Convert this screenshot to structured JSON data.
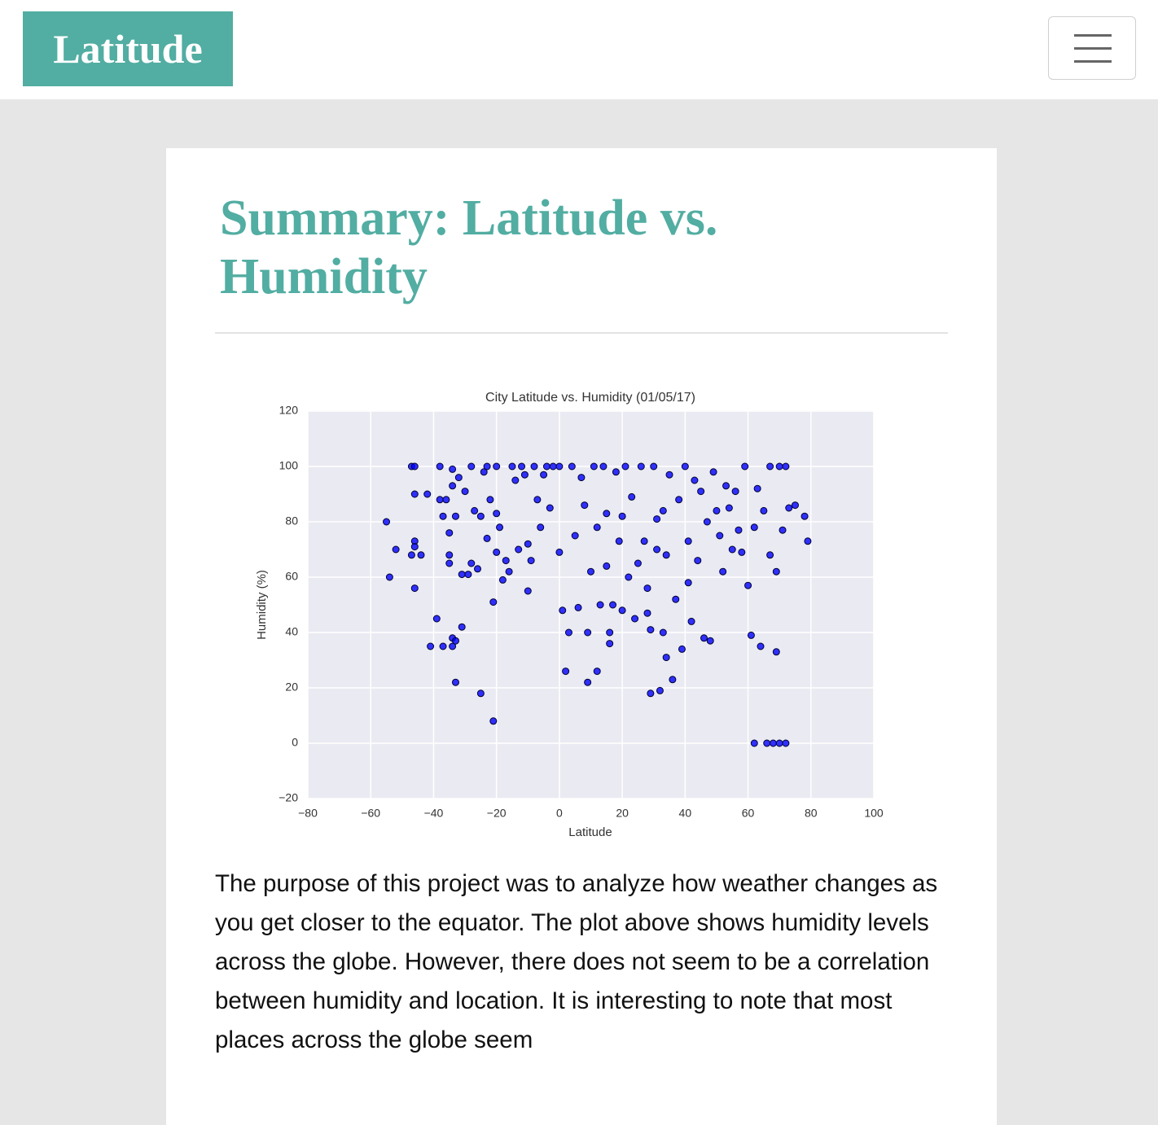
{
  "header": {
    "brand": "Latitude"
  },
  "article": {
    "title": "Summary: Latitude vs. Humidity",
    "paragraph": "The purpose of this project was to analyze how weather changes as you get closer to the equator. The plot above shows humidity levels across the globe. However, there does not seem to be a correlation between humidity and location. It is interesting to note that most places across the globe seem"
  },
  "chart_data": {
    "type": "scatter",
    "title": "City Latitude vs. Humidity (01/05/17)",
    "xlabel": "Latitude",
    "ylabel": "Humidity (%)",
    "color": "#0000ff",
    "edge_color": "#000033",
    "background": "#eaeaf2",
    "grid": true,
    "xlim": [
      -80,
      100
    ],
    "ylim": [
      -20,
      120
    ],
    "xticks": [
      {
        "value": -80,
        "label": "−80"
      },
      {
        "value": -60,
        "label": "−60"
      },
      {
        "value": -40,
        "label": "−40"
      },
      {
        "value": -20,
        "label": "−20"
      },
      0,
      20,
      40,
      60,
      80,
      100
    ],
    "yticks": [
      {
        "value": -20,
        "label": "−20"
      },
      0,
      20,
      40,
      60,
      80,
      100,
      120
    ],
    "x": [
      -55,
      -54,
      -52,
      -47,
      -46,
      -46,
      -46,
      -46,
      -47,
      -46,
      -44,
      -42,
      -41,
      -39,
      -38,
      -38,
      -37,
      -37,
      -36,
      -35,
      -35,
      -35,
      -34,
      -34,
      -34,
      -34,
      -33,
      -33,
      -33,
      -32,
      -31,
      -31,
      -30,
      -29,
      -28,
      -28,
      -27,
      -26,
      -25,
      -25,
      -24,
      -23,
      -23,
      -22,
      -21,
      -21,
      -20,
      -20,
      -20,
      -19,
      -18,
      -17,
      -16,
      -15,
      -14,
      -13,
      -12,
      -11,
      -10,
      -10,
      -9,
      -8,
      -7,
      -6,
      -5,
      -4,
      -3,
      -2,
      0,
      0,
      1,
      2,
      3,
      4,
      5,
      6,
      7,
      8,
      9,
      9,
      10,
      11,
      12,
      12,
      13,
      14,
      15,
      15,
      16,
      16,
      17,
      18,
      19,
      20,
      20,
      21,
      22,
      23,
      24,
      25,
      26,
      27,
      28,
      28,
      29,
      29,
      30,
      31,
      31,
      32,
      33,
      33,
      34,
      34,
      35,
      36,
      37,
      38,
      39,
      40,
      41,
      41,
      42,
      43,
      44,
      45,
      46,
      47,
      48,
      49,
      50,
      51,
      52,
      53,
      54,
      55,
      56,
      57,
      58,
      59,
      60,
      61,
      62,
      62,
      63,
      64,
      65,
      66,
      67,
      67,
      68,
      69,
      69,
      70,
      70,
      71,
      72,
      72,
      73,
      75,
      78,
      79
    ],
    "values": [
      80,
      60,
      70,
      100,
      100,
      90,
      73,
      71,
      68,
      56,
      68,
      90,
      35,
      45,
      100,
      88,
      35,
      82,
      88,
      68,
      65,
      76,
      99,
      93,
      38,
      35,
      37,
      22,
      82,
      96,
      42,
      61,
      91,
      61,
      100,
      65,
      84,
      63,
      82,
      18,
      98,
      100,
      74,
      88,
      51,
      8,
      100,
      83,
      69,
      78,
      59,
      66,
      62,
      100,
      95,
      70,
      100,
      97,
      55,
      72,
      66,
      100,
      88,
      78,
      97,
      100,
      85,
      100,
      100,
      69,
      48,
      26,
      40,
      100,
      75,
      49,
      96,
      86,
      40,
      22,
      62,
      100,
      26,
      78,
      50,
      100,
      83,
      64,
      36,
      40,
      50,
      98,
      73,
      82,
      48,
      100,
      60,
      89,
      45,
      65,
      100,
      73,
      47,
      56,
      18,
      41,
      100,
      70,
      81,
      19,
      40,
      84,
      31,
      68,
      97,
      23,
      52,
      88,
      34,
      100,
      58,
      73,
      44,
      95,
      66,
      91,
      38,
      80,
      37,
      98,
      84,
      75,
      62,
      93,
      85,
      70,
      91,
      77,
      69,
      100,
      57,
      39,
      78,
      0,
      92,
      35,
      84,
      0,
      100,
      68,
      0,
      33,
      62,
      0,
      100,
      77,
      0,
      100,
      85,
      86,
      82,
      73
    ]
  }
}
